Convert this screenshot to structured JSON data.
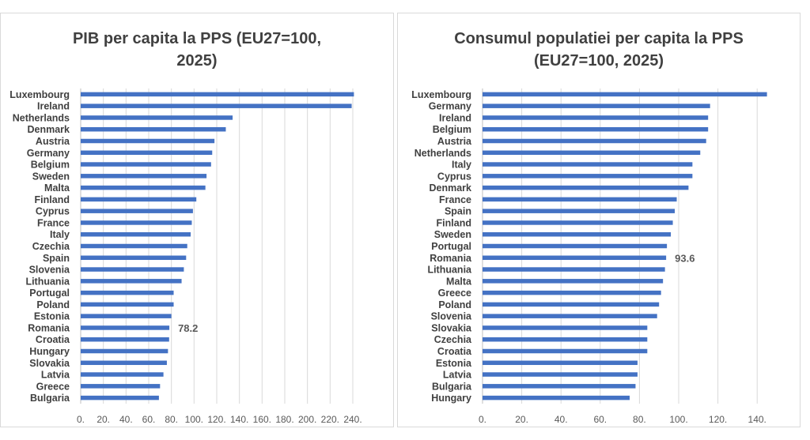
{
  "chart_data": [
    {
      "type": "bar",
      "orientation": "horizontal",
      "title": "PIB per capita la PPS (EU27=100,\n2025)",
      "xlabel": "",
      "ylabel": "",
      "xlim": [
        0,
        240
      ],
      "ticks": [
        0,
        20,
        40,
        60,
        80,
        100,
        120,
        140,
        160,
        180,
        200,
        220,
        240
      ],
      "tick_labels": [
        "0.",
        "20.",
        "40.",
        "60.",
        "80.",
        "100.",
        "120.",
        "140.",
        "160.",
        "180.",
        "200.",
        "220.",
        "240."
      ],
      "grid": true,
      "bar_color": "#4472c4",
      "categories": [
        "Luxembourg",
        "Ireland",
        "Netherlands",
        "Denmark",
        "Austria",
        "Germany",
        "Belgium",
        "Sweden",
        "Malta",
        "Finland",
        "Cyprus",
        "France",
        "Italy",
        "Czechia",
        "Spain",
        "Slovenia",
        "Lithuania",
        "Portugal",
        "Poland",
        "Estonia",
        "Romania",
        "Croatia",
        "Hungary",
        "Slovakia",
        "Latvia",
        "Greece",
        "Bulgaria"
      ],
      "values": [
        241,
        239,
        134,
        128,
        118,
        116,
        115,
        111,
        110,
        102,
        99,
        98,
        97,
        94,
        93,
        91,
        89,
        82,
        82,
        80,
        78.2,
        78,
        77,
        76,
        73,
        70,
        69
      ],
      "data_labels": [
        {
          "category": "Romania",
          "text": "78.2"
        }
      ]
    },
    {
      "type": "bar",
      "orientation": "horizontal",
      "title": "Consumul populatiei per capita la PPS\n(EU27=100, 2025)",
      "xlabel": "",
      "ylabel": "",
      "xlim": [
        0,
        150
      ],
      "ticks": [
        0,
        20,
        40,
        60,
        80,
        100,
        120,
        140
      ],
      "tick_labels": [
        "0.",
        "20.",
        "40.",
        "60.",
        "80.",
        "100.",
        "120.",
        "140."
      ],
      "grid": true,
      "bar_color": "#4472c4",
      "categories": [
        "Luxembourg",
        "Germany",
        "Ireland",
        "Belgium",
        "Austria",
        "Netherlands",
        "Italy",
        "Cyprus",
        "Denmark",
        "France",
        "Spain",
        "Finland",
        "Sweden",
        "Portugal",
        "Romania",
        "Lithuania",
        "Malta",
        "Greece",
        "Poland",
        "Slovenia",
        "Slovakia",
        "Czechia",
        "Croatia",
        "Estonia",
        "Latvia",
        "Bulgaria",
        "Hungary"
      ],
      "values": [
        145,
        116,
        115,
        115,
        114,
        111,
        107,
        107,
        105,
        99,
        98,
        97,
        96,
        94,
        93.6,
        93,
        92,
        91,
        90,
        89,
        84,
        84,
        84,
        79,
        79,
        78,
        75
      ],
      "data_labels": [
        {
          "category": "Romania",
          "text": "93.6"
        }
      ]
    }
  ]
}
